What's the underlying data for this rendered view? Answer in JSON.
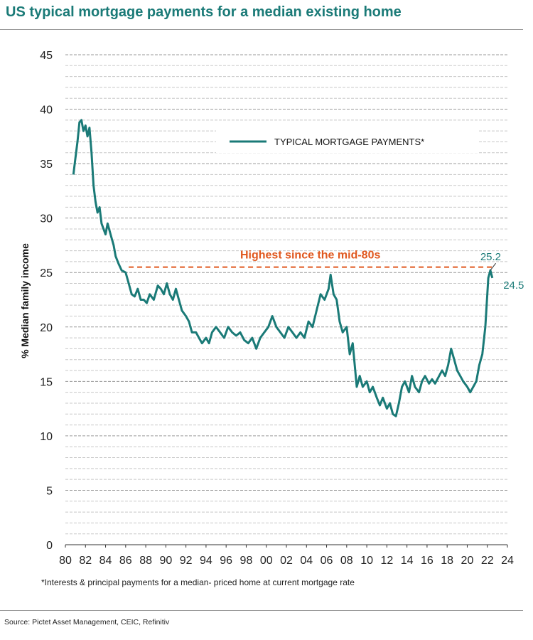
{
  "title": "US typical mortgage payments for a median existing home",
  "footnote": "*Interests & principal payments for a median- priced home at current mortgage rate",
  "source": "Source: Pictet Asset Management, CEIC, Refinitiv",
  "colors": {
    "series": "#1a7a77",
    "highlight": "#e0581f",
    "title": "#1a7a77"
  },
  "chart_data": {
    "type": "line",
    "title": "US typical mortgage payments for a median existing home",
    "ylabel": "% Median family income",
    "xlabel": "",
    "ylim": [
      0,
      45
    ],
    "xlim": [
      1980,
      2024
    ],
    "y_ticks": [
      "0",
      "5",
      "10",
      "15",
      "20",
      "25",
      "30",
      "35",
      "40",
      "45"
    ],
    "x_ticks": [
      "80",
      "82",
      "84",
      "86",
      "88",
      "90",
      "92",
      "94",
      "96",
      "98",
      "00",
      "02",
      "04",
      "06",
      "08",
      "10",
      "12",
      "14",
      "16",
      "18",
      "20",
      "22",
      "24"
    ],
    "grid": true,
    "legend": "top-right",
    "series": [
      {
        "name": "TYPICAL MORTGAGE PAYMENTS*",
        "x": [
          1980.8,
          1981.0,
          1981.2,
          1981.4,
          1981.6,
          1981.8,
          1982.0,
          1982.2,
          1982.4,
          1982.6,
          1982.8,
          1983.0,
          1983.2,
          1983.4,
          1983.6,
          1983.8,
          1984.0,
          1984.2,
          1984.5,
          1984.8,
          1985.0,
          1985.3,
          1985.6,
          1986.0,
          1986.3,
          1986.6,
          1986.9,
          1987.2,
          1987.5,
          1987.8,
          1988.1,
          1988.4,
          1988.8,
          1989.2,
          1989.5,
          1989.8,
          1990.1,
          1990.4,
          1990.7,
          1991.0,
          1991.3,
          1991.6,
          1992.0,
          1992.3,
          1992.6,
          1993.0,
          1993.3,
          1993.6,
          1994.0,
          1994.3,
          1994.6,
          1995.0,
          1995.4,
          1995.8,
          1996.2,
          1996.6,
          1997.0,
          1997.4,
          1997.8,
          1998.2,
          1998.6,
          1999.0,
          1999.4,
          1999.8,
          2000.2,
          2000.6,
          2001.0,
          2001.4,
          2001.8,
          2002.2,
          2002.6,
          2003.0,
          2003.4,
          2003.8,
          2004.2,
          2004.6,
          2005.0,
          2005.4,
          2005.8,
          2006.2,
          2006.4,
          2006.7,
          2007.0,
          2007.3,
          2007.6,
          2008.0,
          2008.3,
          2008.6,
          2009.0,
          2009.3,
          2009.6,
          2010.0,
          2010.3,
          2010.6,
          2011.0,
          2011.3,
          2011.6,
          2012.0,
          2012.3,
          2012.6,
          2012.9,
          2013.2,
          2013.5,
          2013.8,
          2014.2,
          2014.5,
          2014.8,
          2015.2,
          2015.5,
          2015.8,
          2016.2,
          2016.5,
          2016.8,
          2017.2,
          2017.5,
          2017.8,
          2018.1,
          2018.4,
          2018.7,
          2019.0,
          2019.3,
          2019.6,
          2020.0,
          2020.3,
          2020.6,
          2020.9,
          2021.2,
          2021.5,
          2021.8,
          2022.1,
          2022.3,
          2022.5
        ],
        "values": [
          34.0,
          35.5,
          37.0,
          38.8,
          39.0,
          38.0,
          38.5,
          37.5,
          38.3,
          36.0,
          33.0,
          31.5,
          30.5,
          31.0,
          29.5,
          29.0,
          28.5,
          29.5,
          28.5,
          27.5,
          26.5,
          25.8,
          25.2,
          25.0,
          24.0,
          23.0,
          22.8,
          23.5,
          22.5,
          22.5,
          22.2,
          23.0,
          22.5,
          23.8,
          23.5,
          23.0,
          24.0,
          23.0,
          22.5,
          23.5,
          22.5,
          21.5,
          21.0,
          20.5,
          19.5,
          19.5,
          19.0,
          18.5,
          19.0,
          18.5,
          19.5,
          20.0,
          19.5,
          19.0,
          20.0,
          19.5,
          19.2,
          19.5,
          18.8,
          18.5,
          19.0,
          18.0,
          19.0,
          19.5,
          20.0,
          21.0,
          20.0,
          19.5,
          19.0,
          20.0,
          19.5,
          19.0,
          19.5,
          19.0,
          20.5,
          20.0,
          21.5,
          23.0,
          22.5,
          23.5,
          24.8,
          23.0,
          22.5,
          20.5,
          19.5,
          20.0,
          17.5,
          18.5,
          14.5,
          15.5,
          14.5,
          15.0,
          14.0,
          14.5,
          13.5,
          12.8,
          13.5,
          12.5,
          13.0,
          12.0,
          11.8,
          13.0,
          14.5,
          15.0,
          14.0,
          15.5,
          14.5,
          14.0,
          15.0,
          15.5,
          14.8,
          15.2,
          14.8,
          15.5,
          16.0,
          15.5,
          16.5,
          18.0,
          17.0,
          16.0,
          15.5,
          15.0,
          14.5,
          14.0,
          14.5,
          15.0,
          16.5,
          17.5,
          20.0,
          24.5,
          25.2,
          24.5
        ]
      }
    ],
    "annotations": [
      {
        "text": "Highest since the mid-80s",
        "y": 25.5
      },
      {
        "text": "25.2",
        "x": 2022.3,
        "y": 25.2
      },
      {
        "text": "24.5",
        "x": 2022.5,
        "y": 24.5
      }
    ]
  }
}
